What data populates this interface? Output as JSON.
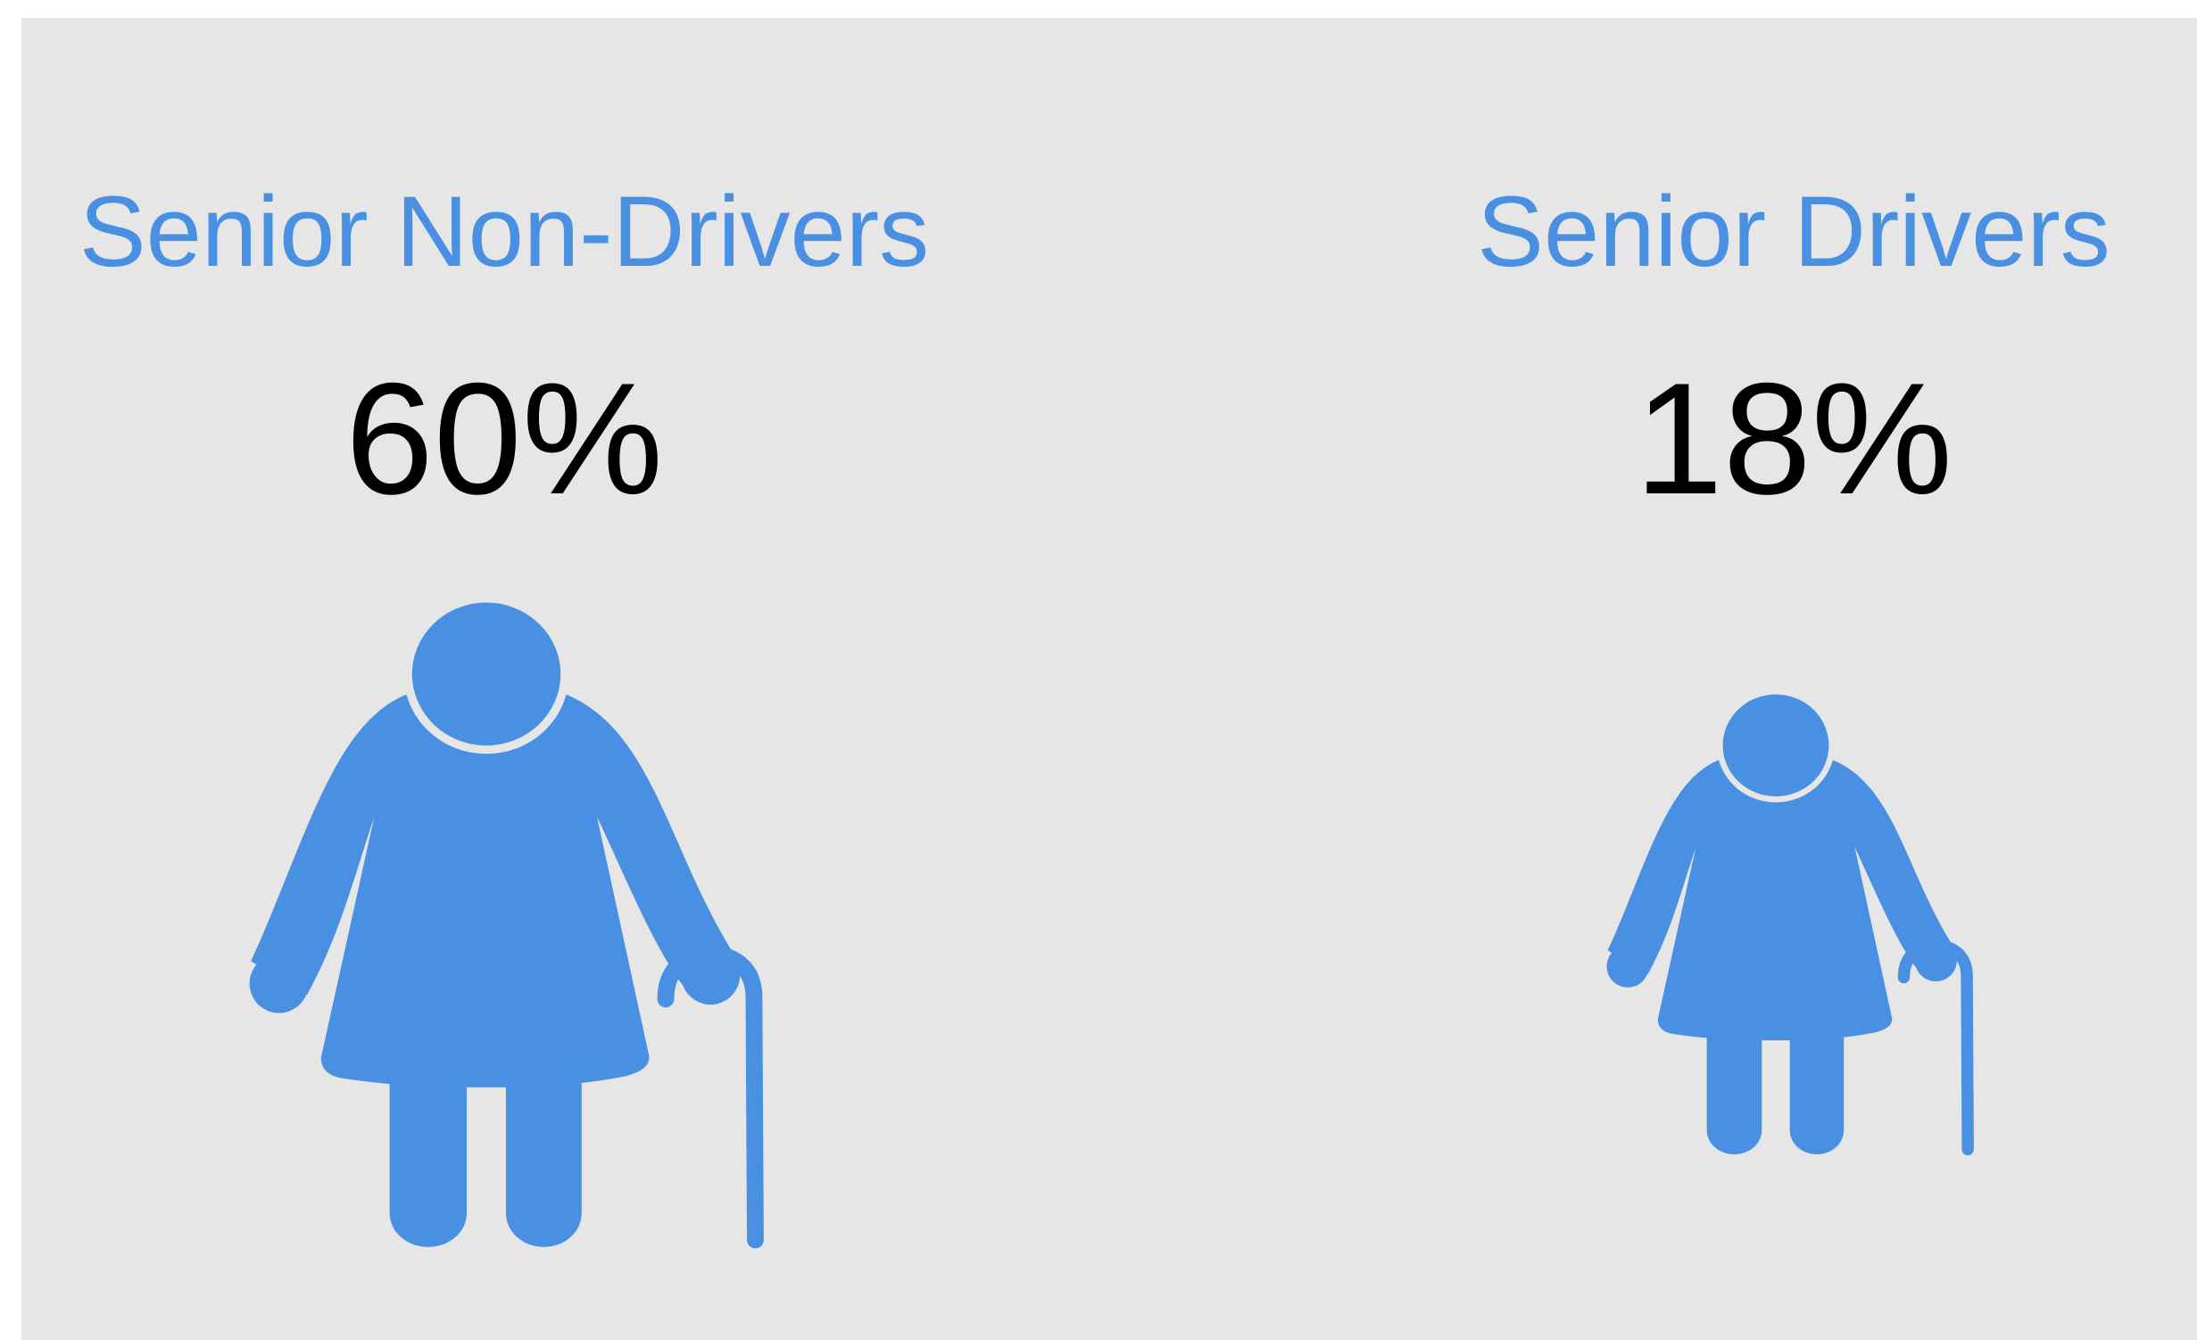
{
  "chart_data": {
    "type": "pictograph",
    "categories": [
      "Senior Non-Drivers",
      "Senior Drivers"
    ],
    "values": [
      60,
      18
    ],
    "value_labels": [
      "60%",
      "18%"
    ],
    "color": "#4a90e2"
  }
}
